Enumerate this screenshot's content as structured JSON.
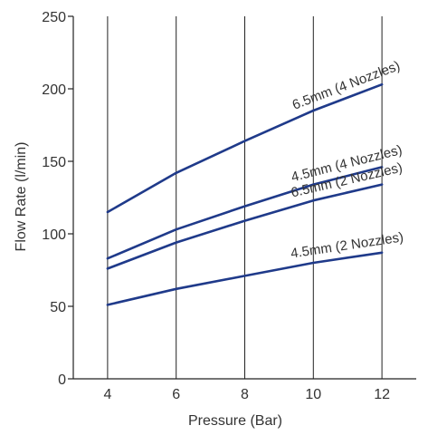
{
  "chart_data": {
    "type": "line",
    "title": "",
    "xlabel": "Pressure (Bar)",
    "ylabel": "Flow Rate (l/min)",
    "xlim": [
      3,
      13
    ],
    "ylim": [
      0,
      250
    ],
    "x_ticks": [
      4,
      6,
      8,
      10,
      12
    ],
    "y_ticks": [
      0,
      50,
      100,
      150,
      200,
      250
    ],
    "grid": "vertical",
    "legend": "none",
    "line_color": "#1f3a8a",
    "grid_color": "#222222",
    "x": [
      4,
      6,
      8,
      10,
      12
    ],
    "series": [
      {
        "name": "6.5mm (4 Nozzles)",
        "values": [
          115,
          142,
          164,
          185,
          203
        ]
      },
      {
        "name": "4.5mm (4 Nozzles)",
        "values": [
          83,
          103,
          119,
          134,
          146
        ]
      },
      {
        "name": "6.5mm (2 Nozzles)",
        "values": [
          76,
          94,
          109,
          123,
          134
        ]
      },
      {
        "name": "4.5mm (2 Nozzles)",
        "values": [
          51,
          62,
          71,
          80,
          87
        ]
      }
    ]
  }
}
